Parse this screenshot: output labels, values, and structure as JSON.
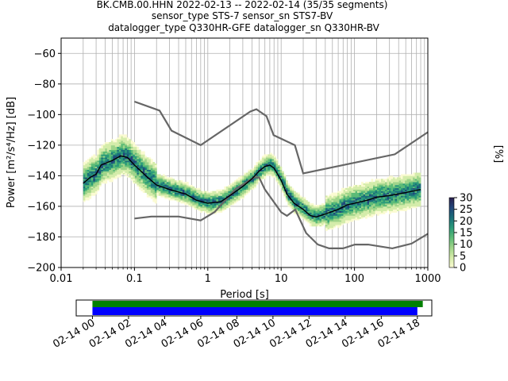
{
  "chart_data": [
    {
      "type": "heatmap",
      "title_lines": [
        "BK.CMB.00.HHN   2022-02-13 -- 2022-02-14  (35/35 segments)",
        "sensor_type STS-7 sensor_sn STS7-BV",
        "datalogger_type Q330HR-GFE datalogger_sn Q330HR-BV"
      ],
      "xlabel": "Period [s]",
      "ylabel": "Power [m²/s⁴/Hz] [dB]",
      "xscale": "log",
      "xlim": [
        0.01,
        1000
      ],
      "ylim": [
        -200,
        -50
      ],
      "x_ticks": [
        0.01,
        0.1,
        1,
        10,
        100,
        1000
      ],
      "x_tick_labels": [
        "0.01",
        "0.1",
        "1",
        "10",
        "100",
        "1000"
      ],
      "y_ticks": [
        -200,
        -180,
        -160,
        -140,
        -120,
        -100,
        -80,
        -60
      ],
      "y_tick_labels": [
        "−200",
        "−180",
        "−160",
        "−140",
        "−120",
        "−100",
        "−80",
        "−60"
      ],
      "grid": true,
      "noise_model_high": {
        "period": [
          0.1,
          0.22,
          0.32,
          0.8,
          3.8,
          4.6,
          6.3,
          7.9,
          15.4,
          20,
          354.8,
          1000
        ],
        "db": [
          -91.5,
          -97.4,
          -110.5,
          -120,
          -98,
          -96.5,
          -101,
          -113.5,
          -120,
          -138.5,
          -126,
          -111.5
        ]
      },
      "noise_model_low": {
        "period": [
          0.1,
          0.17,
          0.4,
          0.8,
          1.24,
          2.4,
          4.3,
          5,
          6,
          10,
          12,
          15.6,
          21.9,
          31.6,
          45,
          70,
          101,
          154,
          328,
          600,
          1000
        ],
        "db": [
          -168,
          -166.7,
          -166.7,
          -169.2,
          -163.7,
          -148.6,
          -141.1,
          -141.1,
          -149,
          -163.8,
          -166.2,
          -162.1,
          -177.5,
          -185,
          -187.5,
          -187.5,
          -185,
          -185,
          -187.5,
          -184.4,
          -178
        ]
      },
      "mode_curve": {
        "period": [
          0.02,
          0.025,
          0.03,
          0.035,
          0.05,
          0.065,
          0.08,
          0.1,
          0.15,
          0.2,
          0.3,
          0.5,
          0.7,
          1,
          1.5,
          2,
          3,
          4,
          5,
          6,
          7,
          8,
          10,
          12,
          15,
          20,
          25,
          30,
          40,
          60,
          80,
          100,
          150,
          200,
          300,
          500,
          800
        ],
        "db": [
          -145,
          -141,
          -139,
          -133,
          -130,
          -127,
          -128,
          -133,
          -141,
          -146,
          -149,
          -152,
          -156,
          -158,
          -157,
          -153,
          -147,
          -142,
          -137,
          -134,
          -133,
          -135,
          -143,
          -152,
          -158,
          -162,
          -166,
          -167,
          -165,
          -162,
          -159,
          -158,
          -156,
          -154,
          -153,
          -151,
          -149
        ]
      },
      "colorbar": {
        "label": "[%]",
        "ticks": [
          0,
          5,
          10,
          15,
          20,
          25,
          30
        ],
        "tick_labels": [
          "0",
          "5",
          "10",
          "15",
          "20",
          "25",
          "30"
        ],
        "range": [
          0,
          30
        ],
        "colors": [
          "#fbfbd2",
          "#d4ecaa",
          "#9fd48a",
          "#5cbb77",
          "#2a9a79",
          "#1b6e7a",
          "#22457a",
          "#2a1f4d"
        ]
      }
    },
    {
      "type": "timeline",
      "x_tick_labels": [
        "02-14 00",
        "02-14 02",
        "02-14 04",
        "02-14 06",
        "02-14 08",
        "02-14 10",
        "02-14 12",
        "02-14 14",
        "02-14 16",
        "02-14 18"
      ],
      "x_tick_hours": [
        0,
        2,
        4,
        6,
        8,
        10,
        12,
        14,
        16,
        18
      ],
      "xlim_hours": [
        -0.9,
        18.8
      ],
      "data_coverage_hours": [
        0,
        18.3
      ],
      "psd_coverage_hours": [
        0,
        18.0
      ],
      "data_color": "#008000",
      "psd_color": "#0000ff"
    }
  ]
}
